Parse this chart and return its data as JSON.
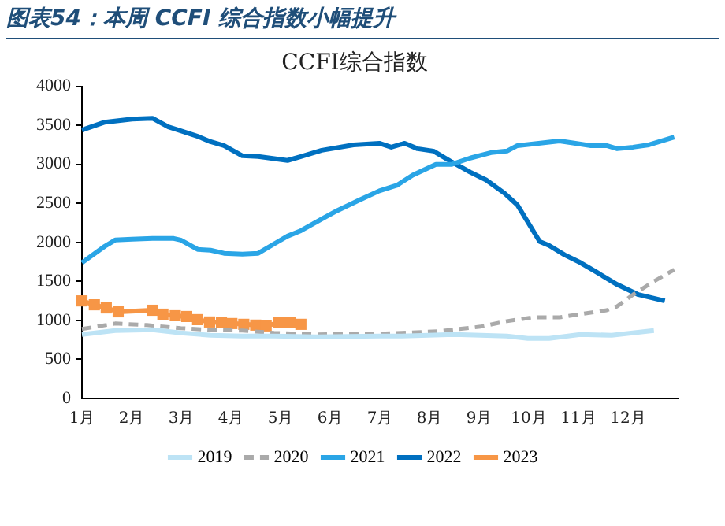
{
  "chart_data": {
    "type": "line",
    "title": "图表54：本周 CCFI 综合指数小幅提升",
    "subtitle": "CCFI综合指数",
    "xlim": [
      1,
      13
    ],
    "xticks": [
      {
        "value": 1,
        "label": "1月"
      },
      {
        "value": 2,
        "label": "2月"
      },
      {
        "value": 3,
        "label": "3月"
      },
      {
        "value": 4,
        "label": "4月"
      },
      {
        "value": 5,
        "label": "5月"
      },
      {
        "value": 6,
        "label": "6月"
      },
      {
        "value": 7,
        "label": "7月"
      },
      {
        "value": 8,
        "label": "8月"
      },
      {
        "value": 9,
        "label": "9月"
      },
      {
        "value": 10,
        "label": "10月"
      },
      {
        "value": 11,
        "label": "11月"
      },
      {
        "value": 12,
        "label": "12月"
      }
    ],
    "ylim": [
      0,
      4000
    ],
    "yticks": [
      0,
      500,
      1000,
      1500,
      2000,
      2500,
      3000,
      3500,
      4000
    ],
    "grid": false,
    "legend": "bottom",
    "marker": "none",
    "series": [
      {
        "name": "2019",
        "color": "#bde3f5",
        "x": [
          1.0,
          1.67,
          2.42,
          2.99,
          3.59,
          4.23,
          4.87,
          5.72,
          6.99,
          7.44,
          8.5,
          9.56,
          9.98,
          10.41,
          11.04,
          11.67,
          12.52
        ],
        "values": [
          820,
          870,
          880,
          840,
          810,
          800,
          800,
          790,
          800,
          800,
          820,
          800,
          770,
          770,
          820,
          810,
          870
        ]
      },
      {
        "name": "2020",
        "color": "#aaaaaa",
        "line_style": "dashed",
        "x": [
          1.0,
          1.67,
          2.31,
          2.99,
          3.59,
          4.23,
          4.87,
          5.72,
          6.99,
          7.44,
          8.18,
          9.03,
          9.56,
          10.09,
          10.62,
          11.04,
          11.57,
          11.78,
          12.1,
          12.52,
          12.93
        ],
        "values": [
          890,
          960,
          940,
          900,
          880,
          870,
          840,
          820,
          830,
          840,
          860,
          920,
          990,
          1040,
          1040,
          1080,
          1130,
          1180,
          1330,
          1500,
          1650
        ]
      },
      {
        "name": "2021",
        "color": "#2aa5e6",
        "x": [
          1.0,
          1.46,
          1.67,
          2.01,
          2.42,
          2.85,
          2.99,
          3.33,
          3.59,
          3.86,
          4.23,
          4.55,
          4.87,
          5.14,
          5.41,
          5.83,
          6.15,
          6.58,
          6.99,
          7.34,
          7.66,
          8.13,
          8.45,
          8.82,
          9.24,
          9.56,
          9.77,
          10.2,
          10.62,
          10.94,
          11.25,
          11.57,
          11.78,
          12.1,
          12.42,
          12.93
        ],
        "values": [
          1740,
          1950,
          2030,
          2040,
          2050,
          2050,
          2030,
          1910,
          1900,
          1860,
          1850,
          1860,
          1980,
          2080,
          2150,
          2300,
          2410,
          2540,
          2660,
          2730,
          2860,
          3000,
          3000,
          3080,
          3150,
          3170,
          3240,
          3270,
          3300,
          3270,
          3240,
          3240,
          3200,
          3220,
          3250,
          3350
        ]
      },
      {
        "name": "2022",
        "color": "#0070c0",
        "x": [
          1.0,
          1.46,
          2.01,
          2.42,
          2.74,
          2.99,
          3.33,
          3.59,
          3.86,
          4.23,
          4.55,
          5.14,
          5.41,
          5.83,
          6.47,
          6.99,
          7.23,
          7.5,
          7.76,
          8.08,
          8.45,
          8.82,
          9.14,
          9.51,
          9.77,
          10.22,
          10.41,
          10.72,
          11.04,
          11.36,
          11.78,
          12.21,
          12.74
        ],
        "values": [
          3440,
          3540,
          3580,
          3590,
          3480,
          3430,
          3360,
          3290,
          3240,
          3110,
          3100,
          3050,
          3100,
          3180,
          3250,
          3270,
          3220,
          3270,
          3200,
          3170,
          3030,
          2900,
          2800,
          2630,
          2480,
          2010,
          1960,
          1840,
          1740,
          1620,
          1460,
          1330,
          1250
        ]
      },
      {
        "name": "2023",
        "color": "#f79646",
        "marker": "square",
        "x": [
          1.0,
          1.25,
          1.49,
          1.73,
          2.42,
          2.63,
          2.88,
          3.11,
          3.33,
          3.57,
          3.81,
          4.02,
          4.26,
          4.5,
          4.71,
          4.96,
          5.19,
          5.41
        ],
        "values": [
          1250,
          1200,
          1160,
          1110,
          1130,
          1080,
          1060,
          1050,
          1010,
          980,
          970,
          960,
          950,
          940,
          930,
          970,
          970,
          950
        ]
      }
    ]
  }
}
